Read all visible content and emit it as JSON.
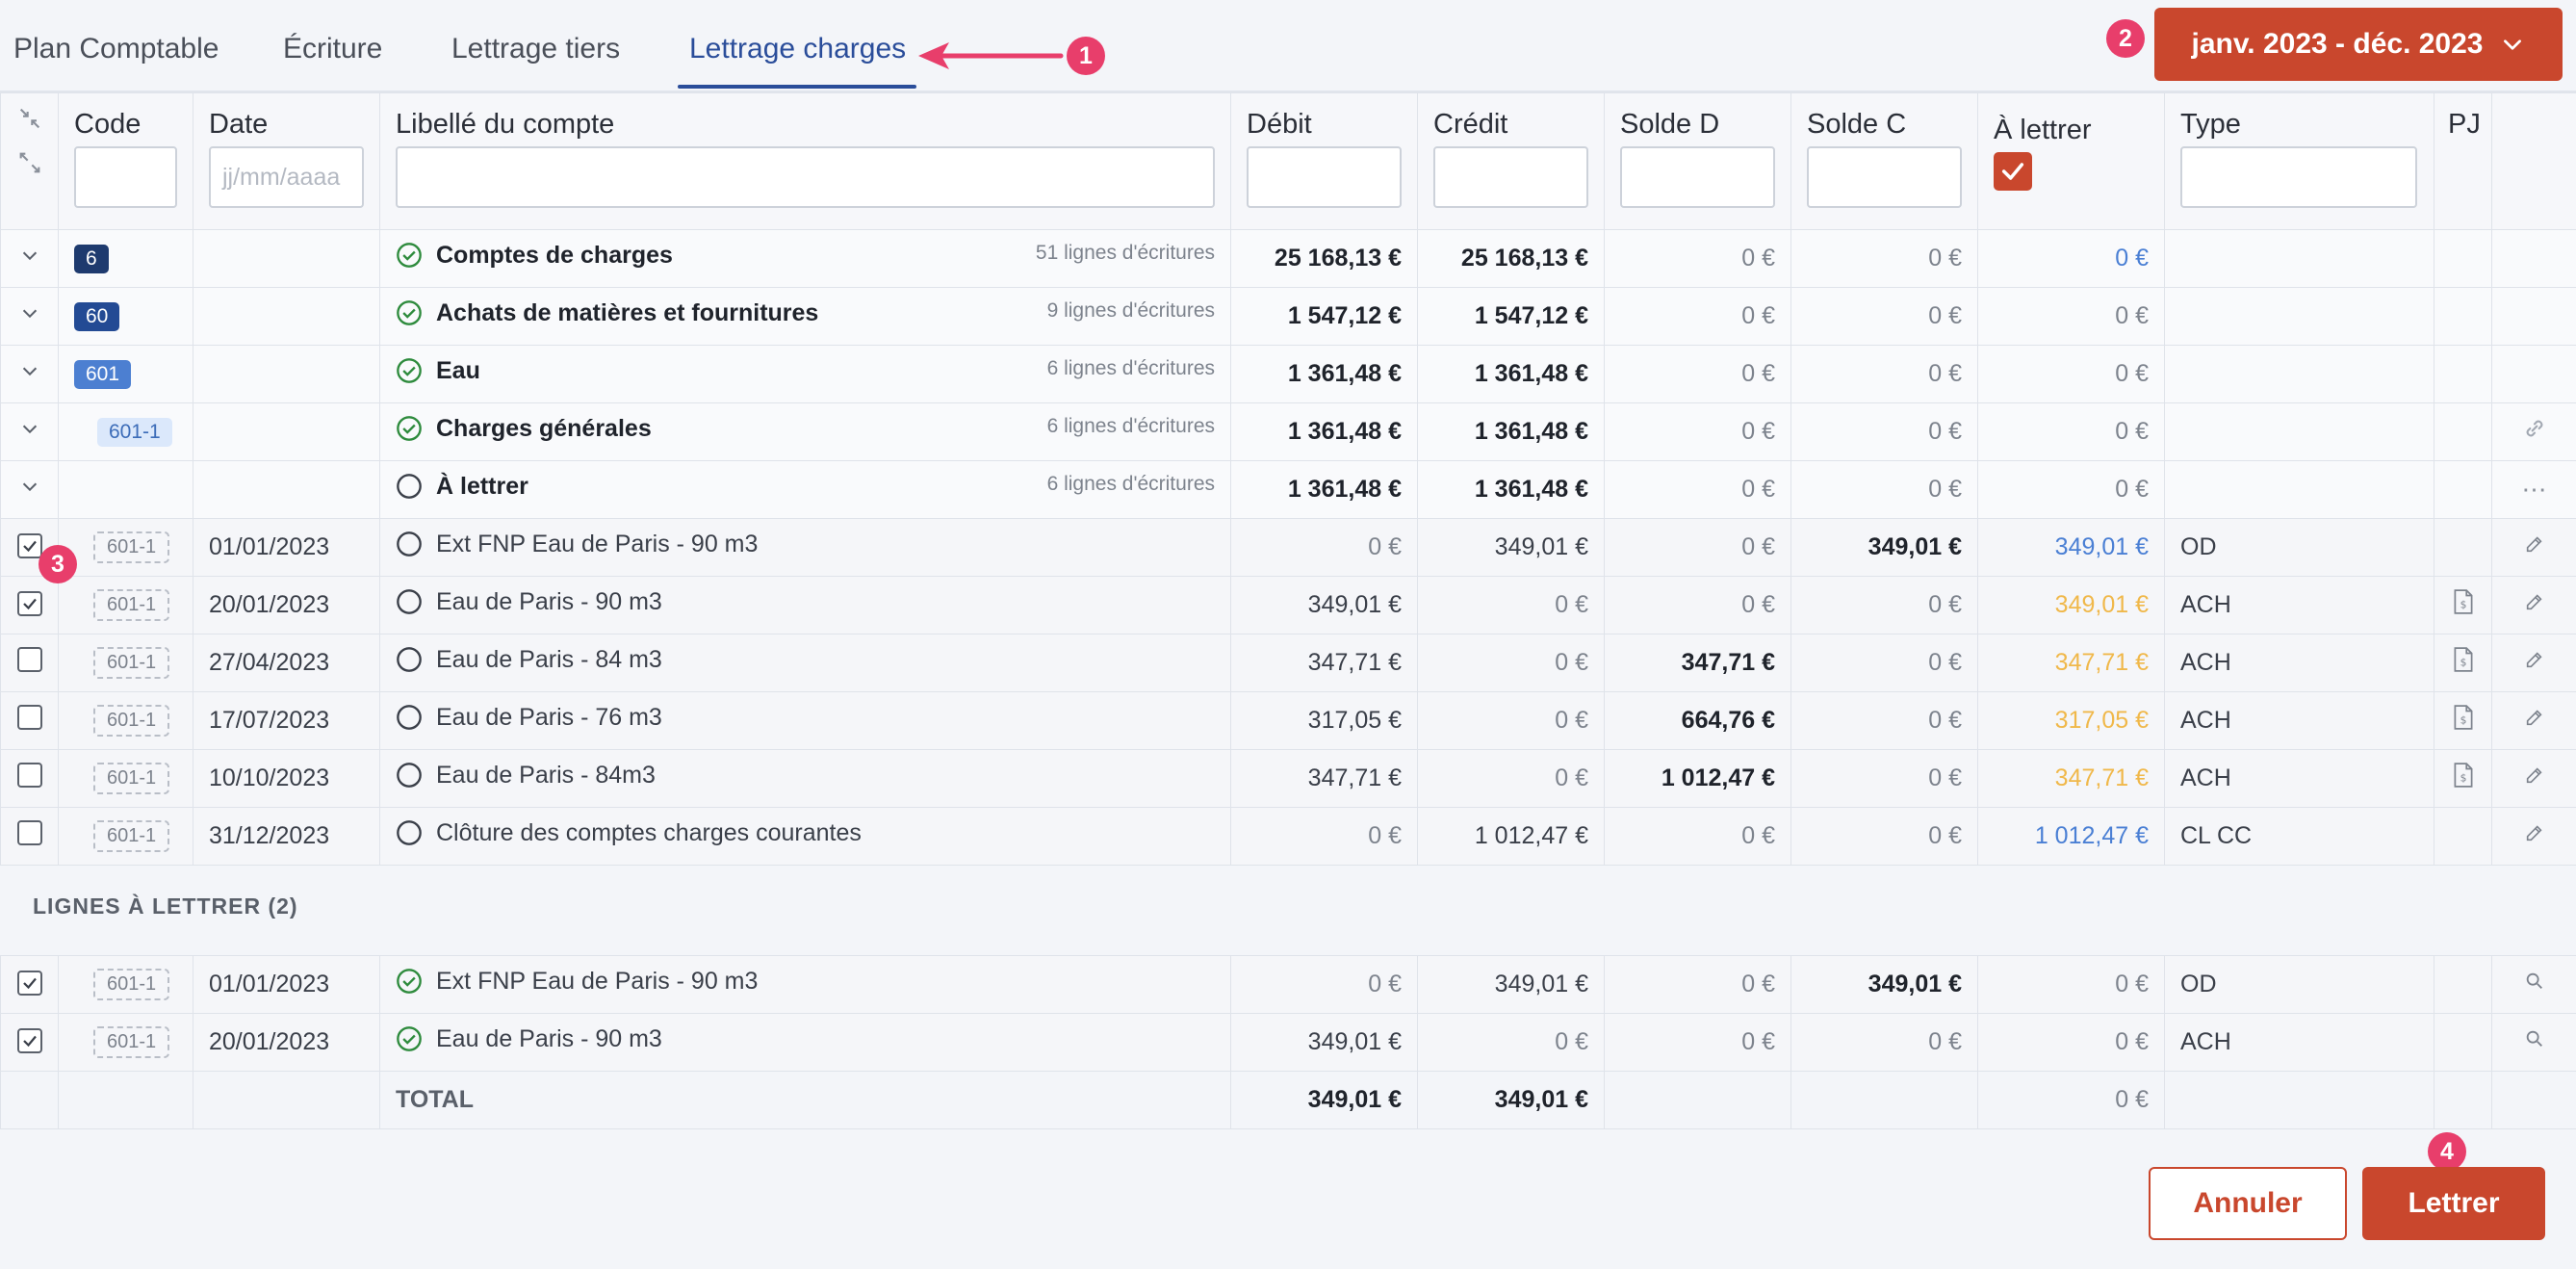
{
  "tabs": [
    "Plan Comptable",
    "Écriture",
    "Lettrage tiers",
    "Lettrage charges"
  ],
  "markers": [
    "1",
    "2",
    "3",
    "4"
  ],
  "date_range": "janv. 2023 - déc. 2023",
  "columns": {
    "code": "Code",
    "date": "Date",
    "libelle": "Libellé du compte",
    "debit": "Débit",
    "credit": "Crédit",
    "solde_d": "Solde D",
    "solde_c": "Solde C",
    "a_lettrer": "À lettrer",
    "type": "Type",
    "pj": "PJ",
    "date_placeholder": "jj/mm/aaaa"
  },
  "groups": [
    {
      "code": "6",
      "label": "Comptes de charges",
      "count": "51 lignes d'écritures",
      "debit": "25 168,13 €",
      "credit": "25 168,13 €",
      "solde_d": "0 €",
      "solde_c": "0 €",
      "a_lettrer": "0 €"
    },
    {
      "code": "60",
      "label": "Achats de matières et fournitures",
      "count": "9 lignes d'écritures",
      "debit": "1 547,12 €",
      "credit": "1 547,12 €",
      "solde_d": "0 €",
      "solde_c": "0 €",
      "a_lettrer": "0 €"
    },
    {
      "code": "601",
      "label": "Eau",
      "count": "6 lignes d'écritures",
      "debit": "1 361,48 €",
      "credit": "1 361,48 €",
      "solde_d": "0 €",
      "solde_c": "0 €",
      "a_lettrer": "0 €"
    },
    {
      "code": "601-1",
      "label": "Charges générales",
      "count": "6 lignes d'écritures",
      "debit": "1 361,48 €",
      "credit": "1 361,48 €",
      "solde_d": "0 €",
      "solde_c": "0 €",
      "a_lettrer": "0 €"
    },
    {
      "code": "",
      "label": "À lettrer",
      "count": "6 lignes d'écritures",
      "debit": "1 361,48 €",
      "credit": "1 361,48 €",
      "solde_d": "0 €",
      "solde_c": "0 €",
      "a_lettrer": "0 €"
    }
  ],
  "entries": [
    {
      "checked": true,
      "code": "601-1",
      "date": "01/01/2023",
      "label": "Ext FNP Eau de Paris - 90 m3",
      "debit": "0 €",
      "credit": "349,01 €",
      "solde_d": "0 €",
      "solde_c": "349,01 €",
      "a_lettrer": "349,01 €",
      "type": "OD"
    },
    {
      "checked": true,
      "code": "601-1",
      "date": "20/01/2023",
      "label": "Eau de Paris - 90 m3",
      "debit": "349,01 €",
      "credit": "0 €",
      "solde_d": "0 €",
      "solde_c": "0 €",
      "a_lettrer": "349,01 €",
      "type": "ACH"
    },
    {
      "checked": false,
      "code": "601-1",
      "date": "27/04/2023",
      "label": "Eau de Paris - 84 m3",
      "debit": "347,71 €",
      "credit": "0 €",
      "solde_d": "347,71 €",
      "solde_c": "0 €",
      "a_lettrer": "347,71 €",
      "type": "ACH"
    },
    {
      "checked": false,
      "code": "601-1",
      "date": "17/07/2023",
      "label": "Eau de Paris - 76 m3",
      "debit": "317,05 €",
      "credit": "0 €",
      "solde_d": "664,76 €",
      "solde_c": "0 €",
      "a_lettrer": "317,05 €",
      "type": "ACH"
    },
    {
      "checked": false,
      "code": "601-1",
      "date": "10/10/2023",
      "label": "Eau de Paris - 84m3",
      "debit": "347,71 €",
      "credit": "0 €",
      "solde_d": "1 012,47 €",
      "solde_c": "0 €",
      "a_lettrer": "347,71 €",
      "type": "ACH"
    },
    {
      "checked": false,
      "code": "601-1",
      "date": "31/12/2023",
      "label": "Clôture des comptes charges courantes",
      "debit": "0 €",
      "credit": "1 012,47 €",
      "solde_d": "0 €",
      "solde_c": "0 €",
      "a_lettrer": "1 012,47 €",
      "type": "CL CC"
    }
  ],
  "section_title": "LIGNES À LETTRER (2)",
  "selected": [
    {
      "code": "601-1",
      "date": "01/01/2023",
      "label": "Ext FNP Eau de Paris - 90 m3",
      "debit": "0 €",
      "credit": "349,01 €",
      "solde_d": "0 €",
      "solde_c": "349,01 €",
      "a_lettrer": "0 €",
      "type": "OD"
    },
    {
      "code": "601-1",
      "date": "20/01/2023",
      "label": "Eau de Paris - 90 m3",
      "debit": "349,01 €",
      "credit": "0 €",
      "solde_d": "0 €",
      "solde_c": "0 €",
      "a_lettrer": "0 €",
      "type": "ACH"
    }
  ],
  "total": {
    "label": "TOTAL",
    "debit": "349,01 €",
    "credit": "349,01 €",
    "a_lettrer": "0 €"
  },
  "buttons": {
    "cancel": "Annuler",
    "letter": "Lettrer"
  },
  "colors": {
    "accent": "#c9472d",
    "tab_active": "#2a4d9a",
    "marker": "#e83e6b",
    "blue": "#4a7fd4",
    "orange": "#f0b84a",
    "green": "#2e8b3d"
  }
}
